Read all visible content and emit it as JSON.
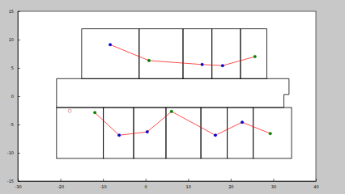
{
  "chart_data": {
    "type": "scatter",
    "xlim": [
      -30,
      40
    ],
    "xticks": [
      -30,
      -20,
      -10,
      0,
      10,
      20,
      30,
      40
    ],
    "ylim": [
      -15,
      15
    ],
    "yticks": [
      -15,
      -10,
      -5,
      0,
      5,
      10,
      15
    ],
    "rooms": [
      {
        "x": [
          -15,
          -1.5
        ],
        "y": [
          3.1,
          11.9
        ]
      },
      {
        "x": [
          -1.5,
          8.8
        ],
        "y": [
          3.1,
          11.9
        ]
      },
      {
        "x": [
          8.8,
          15.6
        ],
        "y": [
          3.1,
          11.9
        ]
      },
      {
        "x": [
          15.6,
          22.3
        ],
        "y": [
          3.1,
          11.9
        ]
      },
      {
        "x": [
          22.3,
          28.5
        ],
        "y": [
          3.1,
          11.9
        ]
      },
      {
        "x": [
          -20.9,
          -9.9
        ],
        "y": [
          -11,
          -2.0
        ]
      },
      {
        "x": [
          -9.9,
          -2.8
        ],
        "y": [
          -11,
          -2.0
        ]
      },
      {
        "x": [
          -2.8,
          4.8
        ],
        "y": [
          -11,
          -2.0
        ]
      },
      {
        "x": [
          4.8,
          13
        ],
        "y": [
          -11,
          -2.0
        ]
      },
      {
        "x": [
          13,
          19.2
        ],
        "y": [
          -11,
          -2.0
        ]
      },
      {
        "x": [
          19.2,
          25.3
        ],
        "y": [
          -11,
          -2.0
        ]
      },
      {
        "x": [
          25.3,
          34.3
        ],
        "y": [
          -11,
          -2.0
        ]
      }
    ],
    "corridor": {
      "x": [
        -20.9,
        33.7,
        33.7,
        32.5,
        32.5,
        -20.9,
        -20.9
      ],
      "y": [
        3.1,
        3.1,
        0.3,
        0.3,
        -2.0,
        -2.0,
        3.1
      ]
    },
    "series": [
      {
        "type": "line",
        "color": "#ff0000",
        "marker": "circle",
        "line_style": "solid",
        "x": [
          -8.3,
          0.8,
          13.3,
          18.1,
          25.7
        ],
        "values": [
          9.1,
          6.3,
          5.6,
          5.4,
          7.0
        ],
        "colors": [
          "#0000cc",
          "#008000",
          "#0000cc",
          "#0000cc",
          "#008000"
        ]
      },
      {
        "type": "line",
        "color": "#ff0000",
        "marker": "circle",
        "line_style": "solid",
        "x": [
          -11.9,
          -6.2,
          0.4,
          6.1,
          16.4,
          22.7,
          29.3
        ],
        "values": [
          -2.9,
          -6.9,
          -6.3,
          -2.7,
          -6.9,
          -4.6,
          -6.6
        ],
        "colors": [
          "#008000",
          "#0000cc",
          "#0000cc",
          "#008000",
          "#0000cc",
          "#0000cc",
          "#008000"
        ]
      },
      {
        "type": "scatter",
        "color": "#d08080",
        "marker": "open-circle",
        "line_style": "none",
        "x": [
          -17.8
        ],
        "values": [
          -2.6
        ],
        "colors": [
          "#d08080"
        ]
      }
    ]
  }
}
